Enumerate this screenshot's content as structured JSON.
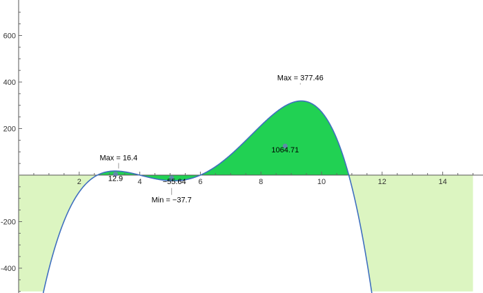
{
  "chart_data": {
    "type": "area",
    "xlim": [
      0,
      15.2
    ],
    "ylim": [
      -500,
      740
    ],
    "x_ticks_major": [
      2,
      4,
      6,
      8,
      10,
      12,
      14
    ],
    "x_tick_labels": [
      "2",
      "4",
      "6",
      "8",
      "10",
      "12",
      "14"
    ],
    "y_ticks_major": [
      -400,
      -200,
      200,
      400,
      600
    ],
    "y_tick_labels": [
      "-400",
      "-200",
      "200",
      "400",
      "600"
    ],
    "grid": false,
    "function": {
      "type": "polynomial",
      "roots": [
        2.6,
        4.0,
        6.0,
        10.9
      ],
      "leading_coefficient": -1.7,
      "negative_domain_boundary": [
        0,
        15
      ],
      "curve_color": "#3f6fbf",
      "outer_region_color": "#dcf5c1",
      "integral_region_color": "#21d153"
    },
    "regions": [
      {
        "x_range": [
          2.6,
          4.0
        ],
        "area": 12.9,
        "area_label": "12.9"
      },
      {
        "x_range": [
          4.0,
          6.0
        ],
        "area": -55.64,
        "area_label": "−55.64"
      },
      {
        "x_range": [
          6.0,
          10.9
        ],
        "area": 1064.71,
        "area_label": "1064.71"
      }
    ],
    "extrema": [
      {
        "kind": "max",
        "x": 3.3,
        "y": 16.4,
        "label": "Max = 16.4"
      },
      {
        "kind": "min",
        "x": 5.05,
        "y": -37.7,
        "label": "Min = −37.7"
      },
      {
        "kind": "max",
        "x": 9.3,
        "y": 377.46,
        "label": "Max = 377.46"
      }
    ]
  }
}
